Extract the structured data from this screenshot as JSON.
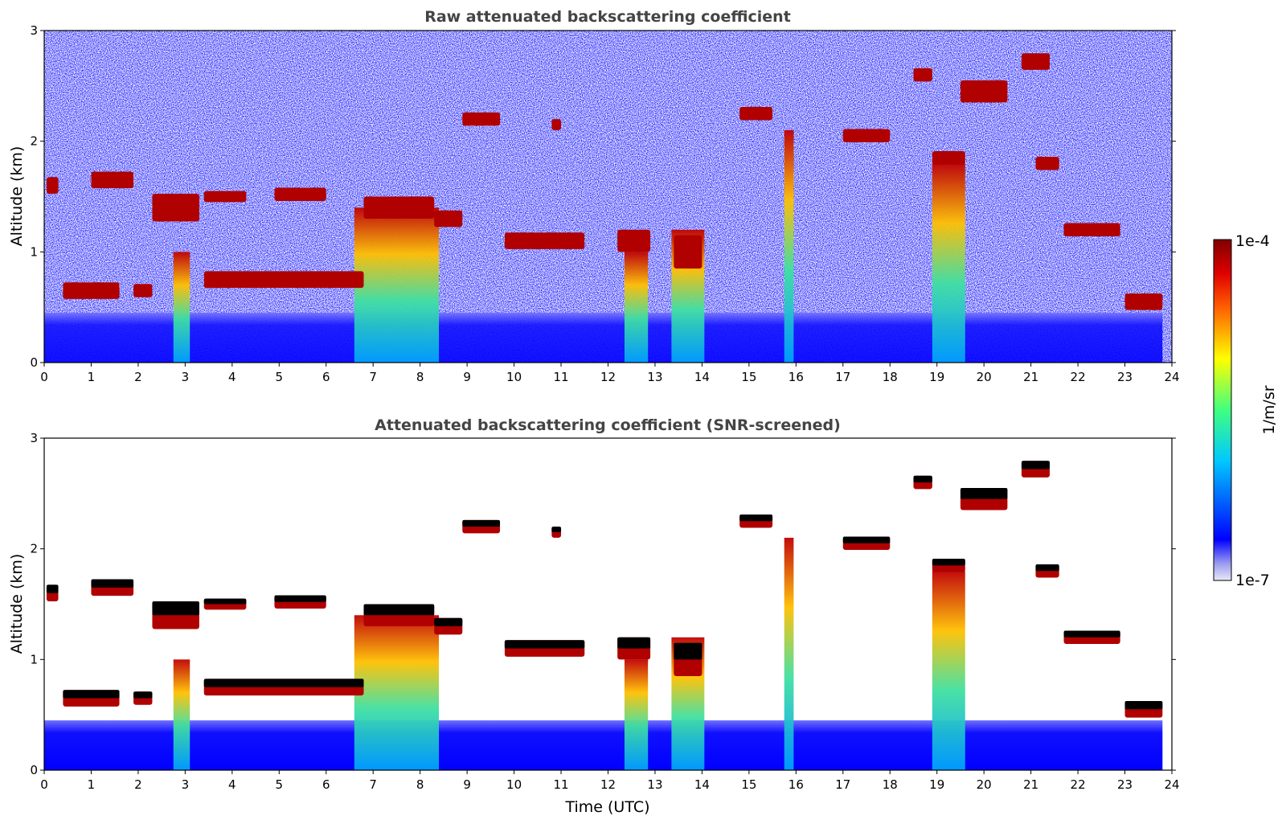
{
  "chart_data": [
    {
      "type": "heatmap",
      "title": "Raw attenuated backscattering coefficient",
      "xlabel": "",
      "ylabel": "Altitude (km)",
      "xlim": [
        0,
        24
      ],
      "ylim": [
        0,
        3
      ],
      "x_ticks": [
        0,
        1,
        2,
        3,
        4,
        5,
        6,
        7,
        8,
        9,
        10,
        11,
        12,
        13,
        14,
        15,
        16,
        17,
        18,
        19,
        20,
        21,
        22,
        23,
        24
      ],
      "y_ticks": [
        0,
        1,
        2,
        3
      ],
      "screened": false,
      "background": "noise",
      "layers": [
        {
          "t0": 0.05,
          "t1": 0.3,
          "alt": 1.6,
          "thick": 0.15
        },
        {
          "t0": 0.4,
          "t1": 1.6,
          "alt": 0.65,
          "thick": 0.15
        },
        {
          "t0": 1.9,
          "t1": 2.3,
          "alt": 0.65,
          "thick": 0.12
        },
        {
          "t0": 1.0,
          "t1": 1.9,
          "alt": 1.65,
          "thick": 0.15
        },
        {
          "t0": 2.3,
          "t1": 3.3,
          "alt": 1.4,
          "thick": 0.25
        },
        {
          "t0": 3.4,
          "t1": 4.3,
          "alt": 1.5,
          "thick": 0.1
        },
        {
          "t0": 4.9,
          "t1": 6.0,
          "alt": 1.52,
          "thick": 0.12
        },
        {
          "t0": 3.4,
          "t1": 6.8,
          "alt": 0.75,
          "thick": 0.15
        },
        {
          "t0": 6.8,
          "t1": 8.3,
          "alt": 1.4,
          "thick": 0.2
        },
        {
          "t0": 8.3,
          "t1": 8.9,
          "alt": 1.3,
          "thick": 0.15
        },
        {
          "t0": 8.9,
          "t1": 9.7,
          "alt": 2.2,
          "thick": 0.12
        },
        {
          "t0": 9.8,
          "t1": 11.5,
          "alt": 1.1,
          "thick": 0.15
        },
        {
          "t0": 10.8,
          "t1": 11.0,
          "alt": 2.15,
          "thick": 0.1
        },
        {
          "t0": 12.2,
          "t1": 12.9,
          "alt": 1.1,
          "thick": 0.2
        },
        {
          "t0": 13.4,
          "t1": 14.0,
          "alt": 1.0,
          "thick": 0.3
        },
        {
          "t0": 14.8,
          "t1": 15.5,
          "alt": 2.25,
          "thick": 0.12
        },
        {
          "t0": 17.0,
          "t1": 18.0,
          "alt": 2.05,
          "thick": 0.12
        },
        {
          "t0": 18.5,
          "t1": 18.9,
          "alt": 2.6,
          "thick": 0.12
        },
        {
          "t0": 18.9,
          "t1": 19.6,
          "alt": 1.85,
          "thick": 0.12
        },
        {
          "t0": 19.5,
          "t1": 20.5,
          "alt": 2.45,
          "thick": 0.2
        },
        {
          "t0": 20.8,
          "t1": 21.4,
          "alt": 2.72,
          "thick": 0.15
        },
        {
          "t0": 21.1,
          "t1": 21.6,
          "alt": 1.8,
          "thick": 0.12
        },
        {
          "t0": 21.7,
          "t1": 22.9,
          "alt": 1.2,
          "thick": 0.12
        },
        {
          "t0": 23.0,
          "t1": 23.8,
          "alt": 0.55,
          "thick": 0.15
        }
      ],
      "plumes": [
        {
          "t0": 6.6,
          "t1": 8.4,
          "alt_top": 1.4
        },
        {
          "t0": 12.35,
          "t1": 12.85,
          "alt_top": 1.0
        },
        {
          "t0": 13.35,
          "t1": 14.05,
          "alt_top": 1.2
        },
        {
          "t0": 15.75,
          "t1": 15.95,
          "alt_top": 2.1
        },
        {
          "t0": 2.75,
          "t1": 3.1,
          "alt_top": 1.0
        },
        {
          "t0": 18.9,
          "t1": 19.6,
          "alt_top": 1.8
        }
      ]
    },
    {
      "type": "heatmap",
      "title": "Attenuated backscattering coefficient (SNR-screened)",
      "xlabel": "Time (UTC)",
      "ylabel": "Altitude (km)",
      "xlim": [
        0,
        24
      ],
      "ylim": [
        0,
        3
      ],
      "x_ticks": [
        0,
        1,
        2,
        3,
        4,
        5,
        6,
        7,
        8,
        9,
        10,
        11,
        12,
        13,
        14,
        15,
        16,
        17,
        18,
        19,
        20,
        21,
        22,
        23,
        24
      ],
      "y_ticks": [
        0,
        1,
        2,
        3
      ],
      "screened": true,
      "background": "none",
      "layers": "same as panel 1",
      "plumes": "same as panel 1"
    }
  ],
  "colorbar": {
    "label": "1/m/sr",
    "max_label": "1e-4",
    "min_label": "1e-7",
    "scale": "log",
    "range": [
      1e-07,
      0.0001
    ],
    "colormap": [
      "#e8e8f8",
      "#0000ff",
      "#00c8ff",
      "#40ff80",
      "#ffff00",
      "#ff8000",
      "#ff0000",
      "#800000"
    ]
  }
}
